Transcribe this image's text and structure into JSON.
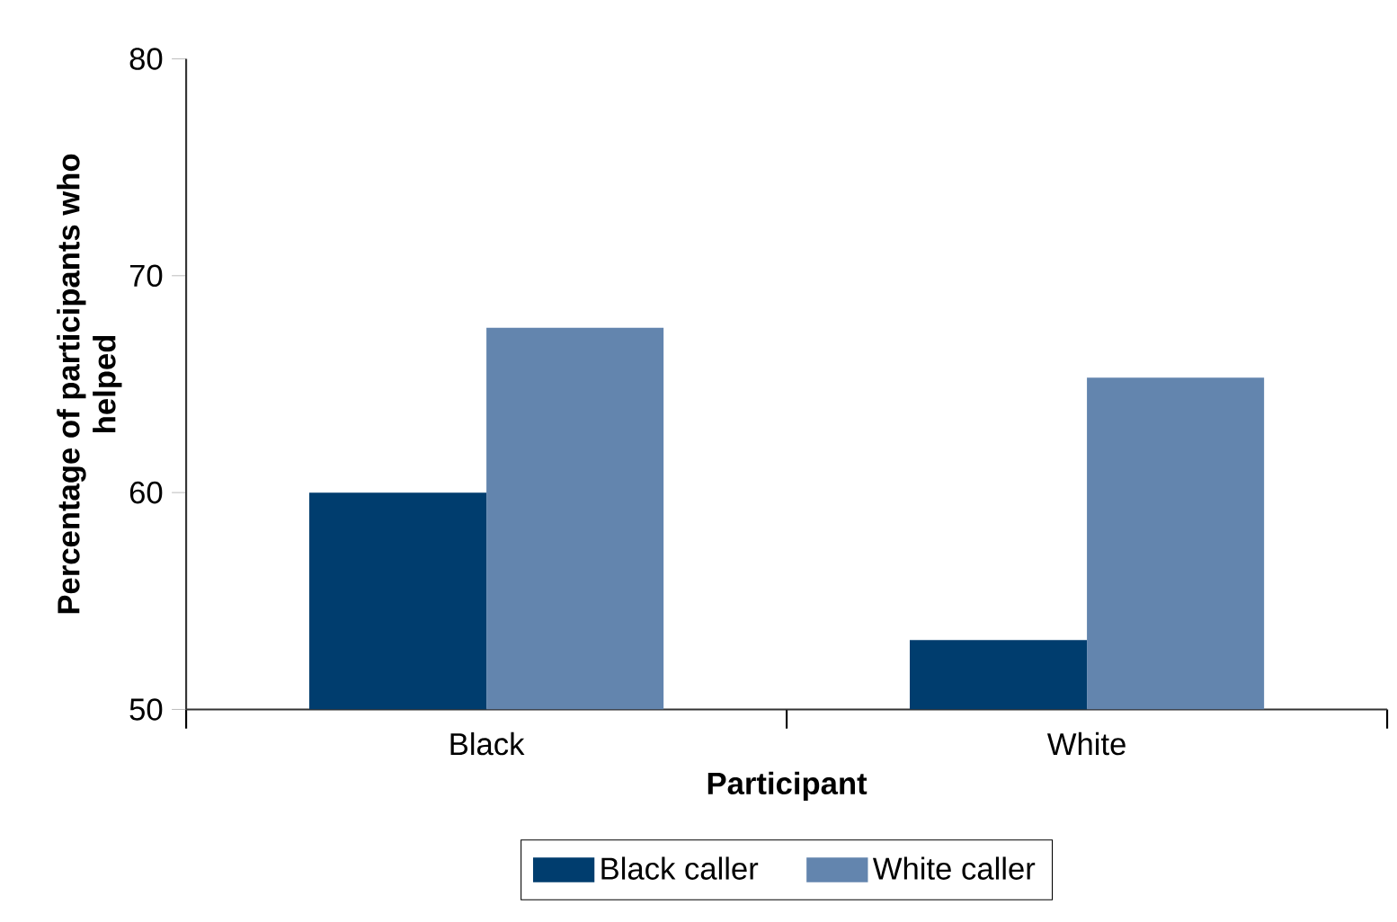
{
  "chart_data": {
    "type": "bar",
    "xlabel": "Participant",
    "ylabel": "Percentage of participants who helped",
    "categories": [
      "Black",
      "White"
    ],
    "series": [
      {
        "name": "Black caller",
        "color": "#003d6e",
        "values": [
          60.0,
          53.2
        ]
      },
      {
        "name": "White caller",
        "color": "#6385ae",
        "values": [
          67.6,
          65.3
        ]
      }
    ],
    "ylim": [
      50,
      80
    ],
    "yticks": [
      50,
      60,
      70,
      80
    ],
    "grid": false,
    "legend": "bottom"
  }
}
